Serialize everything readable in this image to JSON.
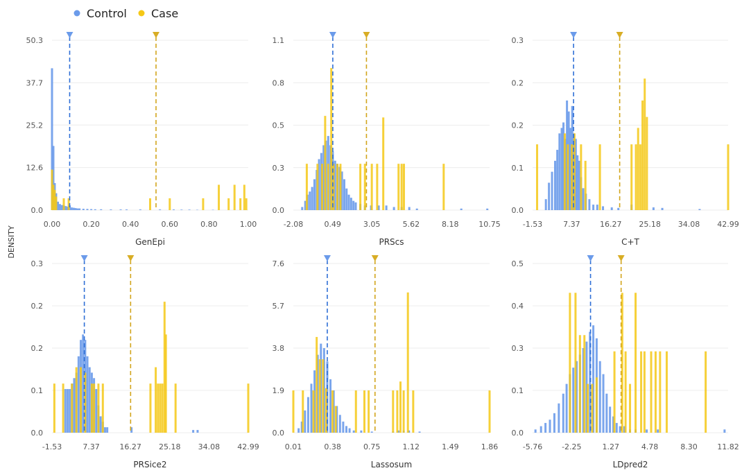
{
  "figure": {
    "ylabel": "DENSITY",
    "legend": [
      {
        "label": "Control",
        "color": "#6b9bea"
      },
      {
        "label": "Case",
        "color": "#f5c816"
      }
    ],
    "colors": {
      "control": "#6b9bea",
      "case": "#f5c816",
      "control_line": "#2f6fd6",
      "case_line": "#d2a51c"
    }
  },
  "chart_data": [
    {
      "type": "histogram",
      "xlabel": "GenEpi",
      "xticks": [
        "0.00",
        "0.20",
        "0.40",
        "0.60",
        "0.80",
        "1.00"
      ],
      "xtick_values": [
        0,
        0.2,
        0.4,
        0.6,
        0.8,
        1.0
      ],
      "yticks": [
        "0.0",
        "12.6",
        "25.2",
        "37.7",
        "50.3"
      ],
      "ytick_values": [
        0,
        12.6,
        25.2,
        37.7,
        50.3
      ],
      "xlim": [
        0,
        1.0
      ],
      "ylim": [
        0,
        50.3
      ],
      "control_mean": 0.09,
      "case_mean": 0.53,
      "control": [
        [
          0.0,
          42
        ],
        [
          0.007,
          19
        ],
        [
          0.014,
          8
        ],
        [
          0.021,
          5
        ],
        [
          0.03,
          2.5
        ],
        [
          0.04,
          1.8
        ],
        [
          0.05,
          1.5
        ],
        [
          0.06,
          1.4
        ],
        [
          0.07,
          1.2
        ],
        [
          0.08,
          1.0
        ],
        [
          0.09,
          1.4
        ],
        [
          0.1,
          0.8
        ],
        [
          0.11,
          0.7
        ],
        [
          0.12,
          0.6
        ],
        [
          0.13,
          0.5
        ],
        [
          0.14,
          0.5
        ],
        [
          0.16,
          0.4
        ],
        [
          0.18,
          0.35
        ],
        [
          0.2,
          0.3
        ],
        [
          0.22,
          0.25
        ],
        [
          0.25,
          0.25
        ],
        [
          0.3,
          0.2
        ],
        [
          0.35,
          0.2
        ],
        [
          0.38,
          0.2
        ],
        [
          0.45,
          0.2
        ],
        [
          0.55,
          0.2
        ],
        [
          0.62,
          0.2
        ],
        [
          0.66,
          0.15
        ],
        [
          0.7,
          0.15
        ],
        [
          0.74,
          0.1
        ],
        [
          0.82,
          0.1
        ]
      ],
      "case": [
        [
          0.0,
          12
        ],
        [
          0.007,
          7.5
        ],
        [
          0.014,
          6
        ],
        [
          0.021,
          4
        ],
        [
          0.06,
          3.5
        ],
        [
          0.085,
          3.5
        ],
        [
          0.5,
          3.5
        ],
        [
          0.6,
          3.5
        ],
        [
          0.77,
          3.5
        ],
        [
          0.85,
          7.5
        ],
        [
          0.9,
          3.5
        ],
        [
          0.93,
          7.5
        ],
        [
          0.96,
          3.5
        ],
        [
          0.98,
          7.5
        ],
        [
          0.99,
          3.5
        ]
      ]
    },
    {
      "type": "histogram",
      "xlabel": "PRScs",
      "xticks": [
        "-2.08",
        "0.49",
        "3.05",
        "5.62",
        "8.18",
        "10.75"
      ],
      "xtick_values": [
        -2.08,
        0.49,
        3.05,
        5.62,
        8.18,
        10.75
      ],
      "yticks": [
        "0.0",
        "0.3",
        "0.5",
        "0.8",
        "1.1"
      ],
      "ytick_values": [
        0,
        0.275,
        0.55,
        0.825,
        1.1
      ],
      "xlim": [
        -2.08,
        10.75
      ],
      "ylim": [
        0,
        1.1
      ],
      "control_mean": 0.5,
      "case_mean": 2.7,
      "control": [
        [
          -1.5,
          0.02
        ],
        [
          -1.3,
          0.06
        ],
        [
          -1.15,
          0.1
        ],
        [
          -1.0,
          0.12
        ],
        [
          -0.85,
          0.15
        ],
        [
          -0.7,
          0.2
        ],
        [
          -0.55,
          0.26
        ],
        [
          -0.4,
          0.33
        ],
        [
          -0.25,
          0.37
        ],
        [
          -0.1,
          0.42
        ],
        [
          0.05,
          0.45
        ],
        [
          0.2,
          0.48
        ],
        [
          0.35,
          0.42
        ],
        [
          0.5,
          0.38
        ],
        [
          0.65,
          0.32
        ],
        [
          0.8,
          0.3
        ],
        [
          0.95,
          0.28
        ],
        [
          1.1,
          0.25
        ],
        [
          1.25,
          0.2
        ],
        [
          1.4,
          0.14
        ],
        [
          1.55,
          0.1
        ],
        [
          1.7,
          0.08
        ],
        [
          1.85,
          0.06
        ],
        [
          2.0,
          0.05
        ],
        [
          2.3,
          0.04
        ],
        [
          2.6,
          0.03
        ],
        [
          3.0,
          0.03
        ],
        [
          3.5,
          0.03
        ],
        [
          4.0,
          0.03
        ],
        [
          4.5,
          0.02
        ],
        [
          5.0,
          0.02
        ],
        [
          5.5,
          0.02
        ],
        [
          6.0,
          0.01
        ],
        [
          8.9,
          0.01
        ],
        [
          10.6,
          0.01
        ]
      ],
      "case": [
        [
          -1.2,
          0.3
        ],
        [
          -0.5,
          0.3
        ],
        [
          -0.2,
          0.3
        ],
        [
          0.0,
          0.61
        ],
        [
          0.2,
          0.3
        ],
        [
          0.4,
          0.92
        ],
        [
          0.55,
          0.3
        ],
        [
          0.8,
          0.3
        ],
        [
          1.0,
          0.3
        ],
        [
          2.3,
          0.3
        ],
        [
          2.6,
          0.3
        ],
        [
          3.05,
          0.3
        ],
        [
          3.4,
          0.3
        ],
        [
          3.8,
          0.6
        ],
        [
          4.8,
          0.3
        ],
        [
          5.0,
          0.3
        ],
        [
          5.15,
          0.3
        ],
        [
          7.75,
          0.3
        ]
      ]
    },
    {
      "type": "histogram",
      "xlabel": "C+T",
      "xticks": [
        "-1.53",
        "7.37",
        "16.27",
        "25.18",
        "34.08",
        "42.99"
      ],
      "xtick_values": [
        -1.53,
        7.37,
        16.27,
        25.18,
        34.08,
        42.99
      ],
      "yticks": [
        "0.0",
        "0.1",
        "0.2",
        "0.2",
        "0.3"
      ],
      "ytick_values": [
        0,
        0.0775,
        0.155,
        0.2325,
        0.31
      ],
      "xlim": [
        -1.53,
        42.99
      ],
      "ylim": [
        0,
        0.31
      ],
      "control_mean": 7.8,
      "case_mean": 18.3,
      "control": [
        [
          1.5,
          0.02
        ],
        [
          2.2,
          0.05
        ],
        [
          2.9,
          0.07
        ],
        [
          3.6,
          0.09
        ],
        [
          4.1,
          0.11
        ],
        [
          4.6,
          0.14
        ],
        [
          5.1,
          0.15
        ],
        [
          5.5,
          0.16
        ],
        [
          5.9,
          0.13
        ],
        [
          6.3,
          0.2
        ],
        [
          6.7,
          0.18
        ],
        [
          7.1,
          0.15
        ],
        [
          7.5,
          0.19
        ],
        [
          7.9,
          0.14
        ],
        [
          8.3,
          0.13
        ],
        [
          8.7,
          0.1
        ],
        [
          9.1,
          0.09
        ],
        [
          9.5,
          0.06
        ],
        [
          10.0,
          0.04
        ],
        [
          10.6,
          0.03
        ],
        [
          11.4,
          0.02
        ],
        [
          12.3,
          0.01
        ],
        [
          13.2,
          0.01
        ],
        [
          14.5,
          0.007
        ],
        [
          16.5,
          0.005
        ],
        [
          18.0,
          0.004
        ],
        [
          21.0,
          0.01
        ],
        [
          26.0,
          0.005
        ],
        [
          28.0,
          0.004
        ],
        [
          36.5,
          0.002
        ]
      ],
      "case": [
        [
          -0.5,
          0.12
        ],
        [
          5.8,
          0.14
        ],
        [
          6.5,
          0.12
        ],
        [
          7.4,
          0.12
        ],
        [
          8.0,
          0.14
        ],
        [
          9.5,
          0.12
        ],
        [
          10.5,
          0.09
        ],
        [
          13.8,
          0.12
        ],
        [
          21.0,
          0.12
        ],
        [
          22.0,
          0.12
        ],
        [
          22.5,
          0.15
        ],
        [
          23.0,
          0.12
        ],
        [
          23.5,
          0.2
        ],
        [
          24.0,
          0.24
        ],
        [
          24.5,
          0.17
        ],
        [
          42.99,
          0.12
        ]
      ]
    },
    {
      "type": "histogram",
      "xlabel": "PRSice2",
      "xticks": [
        "-1.53",
        "7.37",
        "16.27",
        "25.18",
        "34.08",
        "42.99"
      ],
      "xtick_values": [
        -1.53,
        7.37,
        16.27,
        25.18,
        34.08,
        42.99
      ],
      "yticks": [
        "0.0",
        "0.1",
        "0.2",
        "0.2",
        "0.3"
      ],
      "ytick_values": [
        0,
        0.0775,
        0.155,
        0.2325,
        0.31
      ],
      "xlim": [
        -1.53,
        42.99
      ],
      "ylim": [
        0,
        0.31
      ],
      "control_mean": 5.8,
      "case_mean": 16.3,
      "control": [
        [
          1.5,
          0.08
        ],
        [
          2.0,
          0.08
        ],
        [
          2.5,
          0.08
        ],
        [
          3.0,
          0.09
        ],
        [
          3.5,
          0.1
        ],
        [
          4.0,
          0.11
        ],
        [
          4.5,
          0.14
        ],
        [
          5.0,
          0.17
        ],
        [
          5.5,
          0.18
        ],
        [
          6.0,
          0.17
        ],
        [
          6.5,
          0.14
        ],
        [
          7.0,
          0.12
        ],
        [
          7.5,
          0.11
        ],
        [
          8.0,
          0.1
        ],
        [
          8.5,
          0.08
        ],
        [
          9.0,
          0.05
        ],
        [
          9.5,
          0.03
        ],
        [
          10.0,
          0.02
        ],
        [
          10.5,
          0.01
        ],
        [
          11.0,
          0.01
        ],
        [
          16.5,
          0.01
        ],
        [
          30.5,
          0.005
        ],
        [
          31.5,
          0.005
        ]
      ],
      "case": [
        [
          -1.0,
          0.09
        ],
        [
          1.0,
          0.09
        ],
        [
          3.0,
          0.09
        ],
        [
          4.0,
          0.12
        ],
        [
          5.0,
          0.12
        ],
        [
          6.0,
          0.11
        ],
        [
          7.5,
          0.09
        ],
        [
          8.0,
          0.09
        ],
        [
          9.0,
          0.09
        ],
        [
          10.0,
          0.09
        ],
        [
          20.8,
          0.09
        ],
        [
          22.0,
          0.12
        ],
        [
          22.5,
          0.09
        ],
        [
          23.0,
          0.09
        ],
        [
          23.5,
          0.09
        ],
        [
          24.0,
          0.24
        ],
        [
          24.3,
          0.18
        ],
        [
          26.5,
          0.09
        ],
        [
          42.99,
          0.09
        ]
      ]
    },
    {
      "type": "histogram",
      "xlabel": "Lassosum",
      "xticks": [
        "0.01",
        "0.38",
        "0.75",
        "1.12",
        "1.49",
        "1.86"
      ],
      "xtick_values": [
        0.01,
        0.38,
        0.75,
        1.12,
        1.49,
        1.86
      ],
      "yticks": [
        "0.0",
        "1.9",
        "3.8",
        "5.7",
        "7.6"
      ],
      "ytick_values": [
        0,
        1.9,
        3.8,
        5.7,
        7.6
      ],
      "xlim": [
        0.01,
        1.86
      ],
      "ylim": [
        0,
        7.6
      ],
      "control_mean": 0.33,
      "case_mean": 0.78,
      "control": [
        [
          0.06,
          0.2
        ],
        [
          0.09,
          0.5
        ],
        [
          0.12,
          1.0
        ],
        [
          0.15,
          1.6
        ],
        [
          0.18,
          2.2
        ],
        [
          0.21,
          2.8
        ],
        [
          0.24,
          3.5
        ],
        [
          0.27,
          4.0
        ],
        [
          0.3,
          3.8
        ],
        [
          0.33,
          3.2
        ],
        [
          0.36,
          2.4
        ],
        [
          0.39,
          1.9
        ],
        [
          0.42,
          1.2
        ],
        [
          0.45,
          0.8
        ],
        [
          0.48,
          0.5
        ],
        [
          0.51,
          0.3
        ],
        [
          0.54,
          0.2
        ],
        [
          0.58,
          0.1
        ],
        [
          0.65,
          0.1
        ],
        [
          0.75,
          0.05
        ],
        [
          0.95,
          0.05
        ],
        [
          1.0,
          0.1
        ],
        [
          1.05,
          0.1
        ],
        [
          1.1,
          0.1
        ],
        [
          1.2,
          0.05
        ]
      ],
      "case": [
        [
          0.01,
          1.9
        ],
        [
          0.1,
          1.9
        ],
        [
          0.2,
          1.9
        ],
        [
          0.23,
          4.3
        ],
        [
          0.26,
          3.3
        ],
        [
          0.29,
          3.3
        ],
        [
          0.32,
          2.0
        ],
        [
          0.38,
          1.9
        ],
        [
          0.41,
          1.2
        ],
        [
          0.6,
          1.9
        ],
        [
          0.68,
          1.9
        ],
        [
          0.72,
          1.9
        ],
        [
          0.95,
          1.9
        ],
        [
          0.99,
          1.9
        ],
        [
          1.02,
          2.3
        ],
        [
          1.05,
          1.9
        ],
        [
          1.09,
          6.3
        ],
        [
          1.14,
          1.9
        ],
        [
          1.86,
          1.9
        ]
      ]
    },
    {
      "type": "histogram",
      "xlabel": "LDpred2",
      "xticks": [
        "-5.76",
        "-2.25",
        "1.27",
        "4.78",
        "8.30",
        "11.82"
      ],
      "xtick_values": [
        -5.76,
        -2.25,
        1.27,
        4.78,
        8.3,
        11.82
      ],
      "yticks": [
        "0.0",
        "0.1",
        "0.3",
        "0.4",
        "0.5"
      ],
      "ytick_values": [
        0,
        0.13,
        0.26,
        0.39,
        0.52
      ],
      "xlim": [
        -5.76,
        11.82
      ],
      "ylim": [
        0,
        0.52
      ],
      "control_mean": -0.55,
      "case_mean": 2.2,
      "control": [
        [
          -5.5,
          0.01
        ],
        [
          -5.0,
          0.02
        ],
        [
          -4.6,
          0.03
        ],
        [
          -4.2,
          0.04
        ],
        [
          -3.8,
          0.06
        ],
        [
          -3.4,
          0.09
        ],
        [
          -3.0,
          0.12
        ],
        [
          -2.7,
          0.15
        ],
        [
          -2.4,
          0.18
        ],
        [
          -2.1,
          0.2
        ],
        [
          -1.8,
          0.22
        ],
        [
          -1.5,
          0.24
        ],
        [
          -1.2,
          0.26
        ],
        [
          -0.9,
          0.28
        ],
        [
          -0.6,
          0.31
        ],
        [
          -0.3,
          0.33
        ],
        [
          0.0,
          0.29
        ],
        [
          0.3,
          0.22
        ],
        [
          0.6,
          0.18
        ],
        [
          0.9,
          0.12
        ],
        [
          1.2,
          0.08
        ],
        [
          1.5,
          0.05
        ],
        [
          1.8,
          0.03
        ],
        [
          2.1,
          0.02
        ],
        [
          2.5,
          0.02
        ],
        [
          3.0,
          0.01
        ],
        [
          3.5,
          0.01
        ],
        [
          4.5,
          0.01
        ],
        [
          5.5,
          0.01
        ],
        [
          11.5,
          0.01
        ]
      ],
      "case": [
        [
          -2.4,
          0.43
        ],
        [
          -1.9,
          0.43
        ],
        [
          -1.5,
          0.3
        ],
        [
          -1.1,
          0.3
        ],
        [
          -0.8,
          0.15
        ],
        [
          -0.4,
          0.15
        ],
        [
          0.0,
          0.17
        ],
        [
          1.6,
          0.25
        ],
        [
          2.3,
          0.43
        ],
        [
          2.6,
          0.25
        ],
        [
          3.0,
          0.15
        ],
        [
          3.5,
          0.43
        ],
        [
          4.0,
          0.25
        ],
        [
          4.3,
          0.25
        ],
        [
          4.9,
          0.25
        ],
        [
          5.3,
          0.25
        ],
        [
          5.7,
          0.25
        ],
        [
          6.3,
          0.25
        ],
        [
          9.8,
          0.25
        ]
      ]
    }
  ]
}
